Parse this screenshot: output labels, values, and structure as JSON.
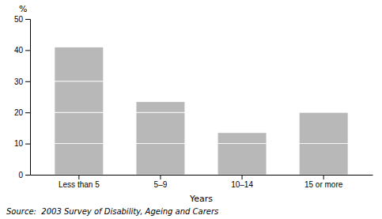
{
  "chart_data": {
    "type": "bar",
    "stacked": true,
    "categories": [
      "Less than 5",
      "5–9",
      "10–14",
      "15 or more"
    ],
    "series": [
      {
        "values": [
          10,
          10,
          10,
          10
        ]
      },
      {
        "values": [
          10,
          10,
          3.5,
          10
        ]
      },
      {
        "values": [
          10,
          3.5,
          null,
          null
        ]
      },
      {
        "values": [
          11,
          null,
          null,
          null
        ]
      }
    ],
    "color": "#b8b8b8",
    "xlabel": "Years",
    "ylabel": "%",
    "source": "Source:  2003 Survey of Disability, Ageing and Carers",
    "ylim": [
      0,
      50
    ],
    "yticks": [
      0,
      10,
      20,
      30,
      40,
      50
    ],
    "grid": false
  }
}
